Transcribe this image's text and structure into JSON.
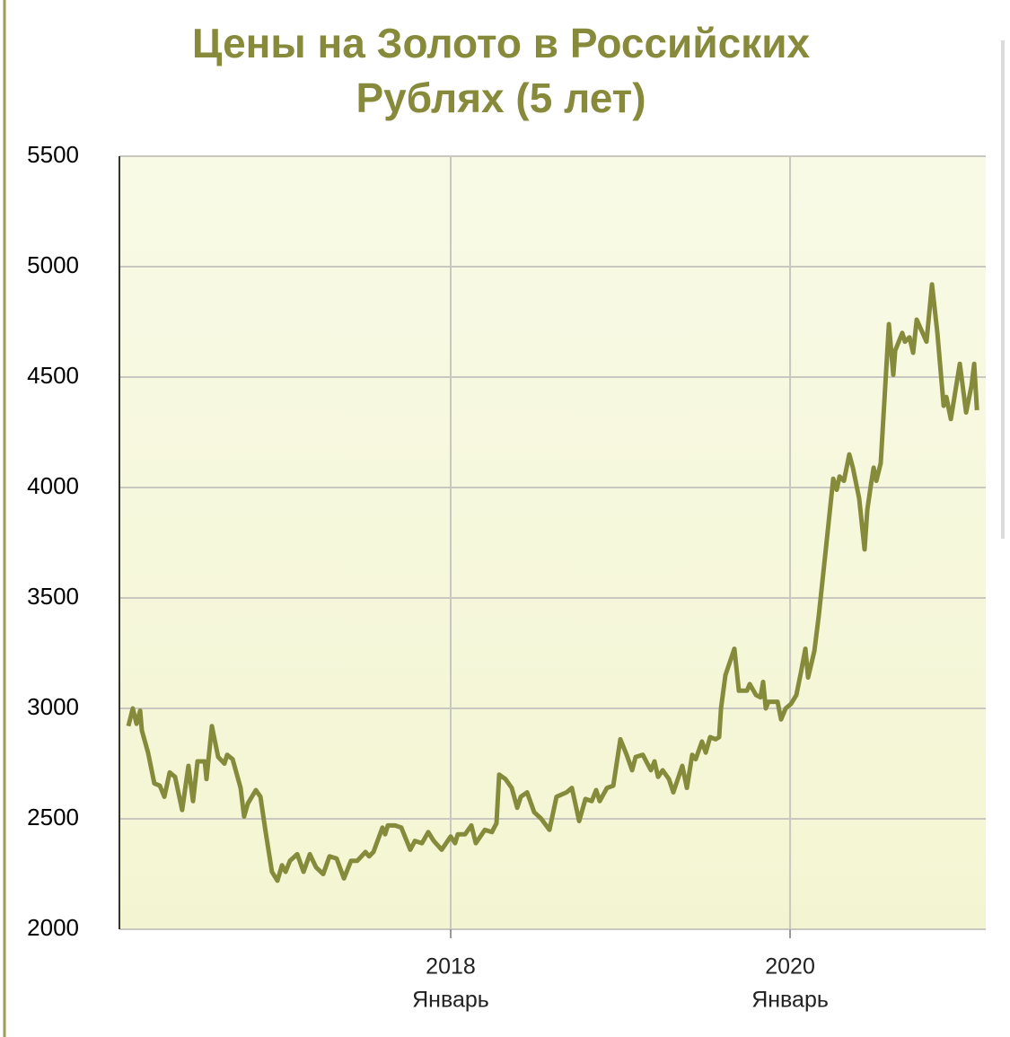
{
  "chart_data": {
    "type": "line",
    "title": [
      "Цены на Золото в Российских",
      "Рублях (5 лет)"
    ],
    "x": [
      2016.101,
      2016.127,
      2016.149,
      2016.17,
      2016.18,
      2016.217,
      2016.254,
      2016.286,
      2016.313,
      2016.344,
      2016.376,
      2016.418,
      2016.455,
      2016.482,
      2016.508,
      2016.551,
      2016.561,
      2016.593,
      2016.63,
      2016.667,
      2016.683,
      2016.715,
      2016.762,
      2016.783,
      2016.805,
      2016.852,
      2016.879,
      2016.91,
      2016.947,
      2016.979,
      2017.006,
      2017.027,
      2017.053,
      2017.096,
      2017.133,
      2017.17,
      2017.207,
      2017.249,
      2017.286,
      2017.328,
      2017.371,
      2017.413,
      2017.45,
      2017.498,
      2017.519,
      2017.545,
      2017.598,
      2017.614,
      2017.63,
      2017.672,
      2017.709,
      2017.762,
      2017.789,
      2017.831,
      2017.868,
      2017.9,
      2017.947,
      2018.0,
      2018.026,
      2018.042,
      2018.085,
      2018.122,
      2018.148,
      2018.201,
      2018.243,
      2018.27,
      2018.286,
      2018.323,
      2018.36,
      2018.392,
      2018.413,
      2018.45,
      2018.492,
      2018.534,
      2018.582,
      2018.624,
      2018.683,
      2018.714,
      2018.757,
      2018.794,
      2018.831,
      2018.857,
      2018.878,
      2018.921,
      2018.958,
      2019.0,
      2019.037,
      2019.069,
      2019.09,
      2019.132,
      2019.18,
      2019.201,
      2019.222,
      2019.249,
      2019.286,
      2019.312,
      2019.365,
      2019.392,
      2019.423,
      2019.444,
      2019.481,
      2019.503,
      2019.529,
      2019.561,
      2019.582,
      2019.593,
      2019.619,
      2019.672,
      2019.698,
      2019.746,
      2019.762,
      2019.799,
      2019.825,
      2019.841,
      2019.857,
      2019.873,
      2019.926,
      2019.947,
      2019.974,
      2020.005,
      2020.037,
      2020.063,
      2020.09,
      2020.106,
      2020.143,
      2020.169,
      2020.212,
      2020.254,
      2020.275,
      2020.291,
      2020.317,
      2020.349,
      2020.37,
      2020.407,
      2020.439,
      2020.455,
      2020.476,
      2020.492,
      2020.508,
      2020.534,
      2020.582,
      2020.608,
      2020.619,
      2020.661,
      2020.677,
      2020.704,
      2020.725,
      2020.746,
      2020.804,
      2020.836,
      2020.868,
      2020.905,
      2020.921,
      2020.947,
      2021.0,
      2021.037,
      2021.069,
      2021.085,
      2021.101
    ],
    "series": [
      {
        "color": "#868b3c",
        "values": [
          2920,
          3000,
          2930,
          2990,
          2900,
          2800,
          2660,
          2650,
          2600,
          2710,
          2690,
          2540,
          2740,
          2580,
          2760,
          2760,
          2680,
          2920,
          2780,
          2750,
          2790,
          2770,
          2640,
          2510,
          2570,
          2630,
          2600,
          2440,
          2260,
          2220,
          2290,
          2260,
          2310,
          2340,
          2260,
          2340,
          2280,
          2250,
          2330,
          2320,
          2230,
          2310,
          2310,
          2350,
          2330,
          2350,
          2460,
          2430,
          2470,
          2470,
          2460,
          2360,
          2400,
          2390,
          2440,
          2400,
          2360,
          2420,
          2390,
          2430,
          2430,
          2470,
          2390,
          2450,
          2440,
          2480,
          2700,
          2680,
          2640,
          2550,
          2600,
          2620,
          2530,
          2500,
          2450,
          2600,
          2620,
          2640,
          2490,
          2590,
          2580,
          2630,
          2580,
          2640,
          2650,
          2860,
          2790,
          2720,
          2780,
          2790,
          2720,
          2760,
          2690,
          2720,
          2680,
          2620,
          2740,
          2640,
          2790,
          2770,
          2850,
          2800,
          2870,
          2860,
          2870,
          3000,
          3150,
          3270,
          3080,
          3080,
          3110,
          3060,
          3050,
          3120,
          3000,
          3030,
          3030,
          2950,
          3000,
          3020,
          3060,
          3160,
          3270,
          3140,
          3260,
          3420,
          3730,
          4040,
          3990,
          4050,
          4030,
          4150,
          4090,
          3950,
          3720,
          3900,
          4010,
          4090,
          4030,
          4110,
          4740,
          4510,
          4620,
          4700,
          4660,
          4680,
          4610,
          4760,
          4660,
          4920,
          4700,
          4370,
          4410,
          4310,
          4560,
          4340,
          4460,
          4560,
          4350
        ]
      }
    ],
    "xlim": [
      2016.048,
      2021.153
    ],
    "xticks": [
      2018,
      2020
    ],
    "xtick_sublabels": [
      "Январь",
      "Январь"
    ],
    "ylim": [
      2000,
      5500
    ],
    "yticks": [
      2000,
      2500,
      3000,
      3500,
      4000,
      4500,
      5000,
      5500
    ],
    "grid": true
  }
}
